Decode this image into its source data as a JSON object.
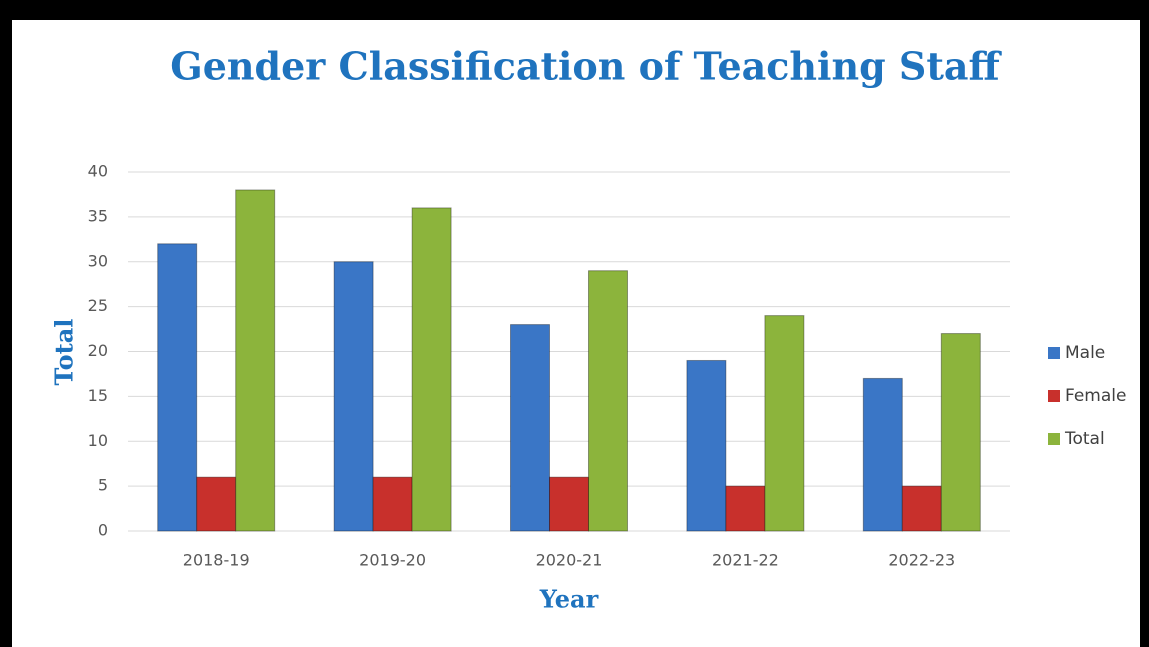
{
  "chart_data": {
    "type": "bar",
    "title": "Gender Classification of Teaching Staff",
    "x_label": "Year",
    "y_label": "Total",
    "categories": [
      "2018-19",
      "2019-20",
      "2020-21",
      "2021-22",
      "2022-23"
    ],
    "series": [
      {
        "name": "Male",
        "color": "#3a76c6",
        "values": [
          32,
          30,
          23,
          19,
          17
        ]
      },
      {
        "name": "Female",
        "color": "#c8302c",
        "values": [
          6,
          6,
          6,
          5,
          5
        ]
      },
      {
        "name": "Total",
        "color": "#8cb43c",
        "values": [
          38,
          36,
          29,
          24,
          22
        ]
      }
    ],
    "ylim": [
      0,
      40
    ],
    "yticks": [
      0,
      5,
      10,
      15,
      20,
      25,
      30,
      35,
      40
    ],
    "grid": true,
    "legend": "right"
  }
}
